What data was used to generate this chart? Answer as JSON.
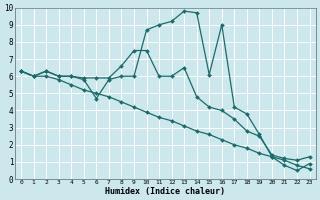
{
  "xlabel": "Humidex (Indice chaleur)",
  "xlim": [
    -0.5,
    23.5
  ],
  "ylim": [
    0,
    10
  ],
  "xticks": [
    0,
    1,
    2,
    3,
    4,
    5,
    6,
    7,
    8,
    9,
    10,
    11,
    12,
    13,
    14,
    15,
    16,
    17,
    18,
    19,
    20,
    21,
    22,
    23
  ],
  "yticks": [
    0,
    1,
    2,
    3,
    4,
    5,
    6,
    7,
    8,
    9,
    10
  ],
  "bg_color": "#cce8ec",
  "line_color": "#1a6b6b",
  "grid_color": "#ffffff",
  "line1_x": [
    0,
    1,
    2,
    3,
    4,
    5,
    6,
    7,
    8,
    9,
    10,
    11,
    12,
    13,
    14,
    15,
    16,
    17,
    18,
    19,
    20,
    21,
    22,
    23
  ],
  "line1_y": [
    6.3,
    6.0,
    6.3,
    6.0,
    6.0,
    5.8,
    4.7,
    5.8,
    6.0,
    6.0,
    8.7,
    9.0,
    9.2,
    9.8,
    9.7,
    6.1,
    9.0,
    4.2,
    3.8,
    2.6,
    1.3,
    0.8,
    0.5,
    0.9
  ],
  "line2_x": [
    0,
    1,
    2,
    3,
    4,
    5,
    6,
    7,
    8,
    9,
    10,
    11,
    12,
    13,
    14,
    15,
    16,
    17,
    18,
    19,
    20,
    21,
    22,
    23
  ],
  "line2_y": [
    6.3,
    6.0,
    6.0,
    5.8,
    5.5,
    5.2,
    5.0,
    4.8,
    4.5,
    4.2,
    3.9,
    3.6,
    3.4,
    3.1,
    2.8,
    2.6,
    2.3,
    2.0,
    1.8,
    1.5,
    1.3,
    1.1,
    0.8,
    0.6
  ],
  "line3_x": [
    0,
    1,
    2,
    3,
    4,
    5,
    6,
    7,
    8,
    9,
    10,
    11,
    12,
    13,
    14,
    15,
    16,
    17,
    18,
    19,
    20,
    21,
    22,
    23
  ],
  "line3_y": [
    6.3,
    6.0,
    6.3,
    6.0,
    6.0,
    5.9,
    5.9,
    5.9,
    6.6,
    7.5,
    7.5,
    6.0,
    6.0,
    6.5,
    4.8,
    4.2,
    4.0,
    3.5,
    2.8,
    2.5,
    1.4,
    1.2,
    1.1,
    1.3
  ]
}
